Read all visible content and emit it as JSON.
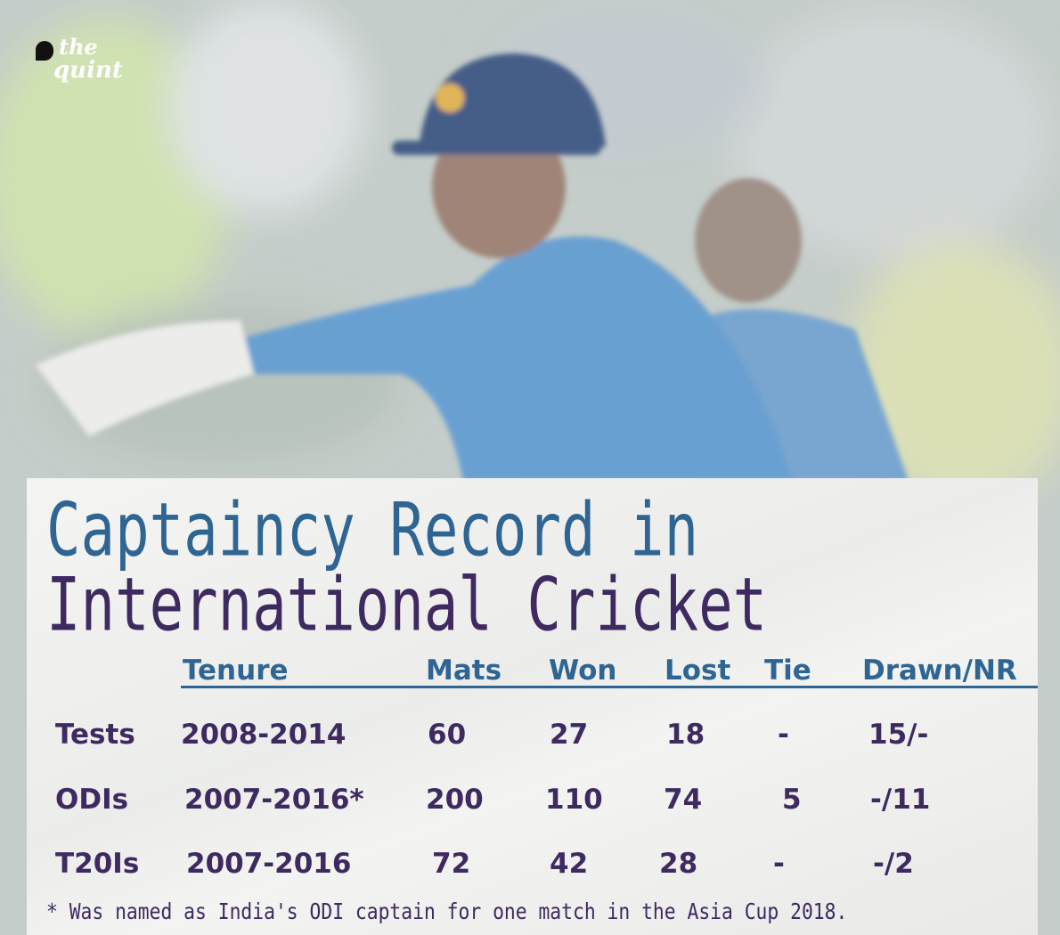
{
  "logo": {
    "line1": "the",
    "line2": "quint"
  },
  "title": {
    "line1": "Captaincy Record in",
    "line2": "International Cricket"
  },
  "table": {
    "header": [
      "Tenure",
      "Mats",
      "Won",
      "Lost",
      "Tie",
      "Drawn/NR"
    ],
    "rows": [
      [
        "Tests",
        "2008-2014",
        "60",
        "27",
        "18",
        "-",
        "15/-"
      ],
      [
        "ODIs",
        "2007-2016*",
        "200",
        "110",
        "74",
        "5",
        "-/11"
      ],
      [
        "T20Is",
        "2007-2016",
        "72",
        "42",
        "28",
        "-",
        "-/2"
      ]
    ]
  },
  "footnote": "* Was named as India's ODI captain for one match in the Asia Cup 2018."
}
